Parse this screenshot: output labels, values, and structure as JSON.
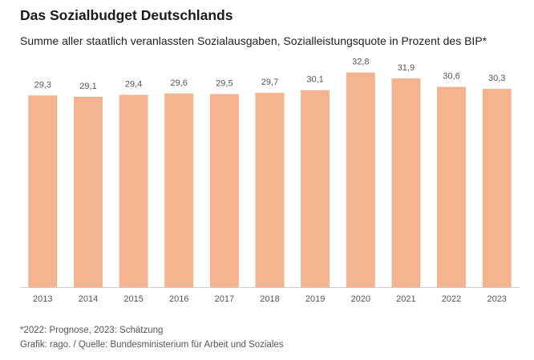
{
  "header": {
    "title": "Das Sozialbudget Deutschlands",
    "subtitle": "Summe aller staatlich veranlassten Sozialausgaben, Sozialleistungsquote in Prozent des BIP*"
  },
  "footer": {
    "note": "*2022: Prognose, 2023: Schätzung",
    "source": "Grafik: rago. / Quelle: Bundesministerium für Arbeit und Soziales"
  },
  "colors": {
    "bar": "#f4b48f",
    "axis": "#cccccc"
  },
  "chart_data": {
    "type": "bar",
    "categories": [
      "2013",
      "2014",
      "2015",
      "2016",
      "2017",
      "2018",
      "2019",
      "2020",
      "2021",
      "2022",
      "2023"
    ],
    "values": [
      29.3,
      29.1,
      29.4,
      29.6,
      29.5,
      29.7,
      30.1,
      32.8,
      31.9,
      30.6,
      30.3
    ],
    "value_labels": [
      "29,3",
      "29,1",
      "29,4",
      "29,6",
      "29,5",
      "29,7",
      "30,1",
      "32,8",
      "31,9",
      "30,6",
      "30,3"
    ],
    "ylim": [
      0,
      33
    ],
    "grid": false,
    "legend": "none"
  }
}
